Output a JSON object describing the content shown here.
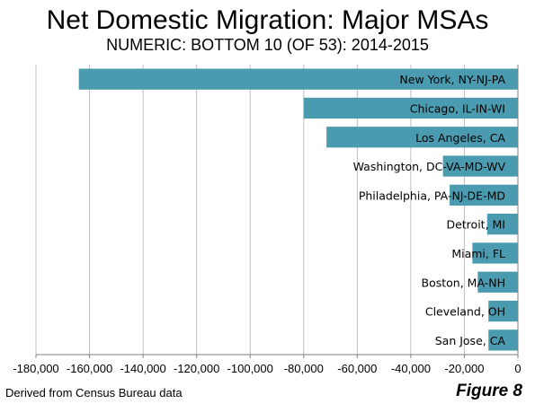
{
  "title": "Net Domestic Migration: Major MSAs",
  "subtitle": "NUMERIC: BOTTOM 10 (OF 53): 2014-2015",
  "source_note": "Derived from Census Bureau data",
  "figure_label": "Figure 8",
  "colors": {
    "bar": "#4a9bb0",
    "grid": "#bfbfbf",
    "axis": "#808080"
  },
  "chart_data": {
    "type": "bar",
    "orientation": "horizontal",
    "categories": [
      "New York, NY-NJ-PA",
      "Chicago, IL-IN-WI",
      "Los Angeles, CA",
      "Washington, DC-VA-MD-WV",
      "Philadelphia, PA-NJ-DE-MD",
      "Detroit,  MI",
      "Miami, FL",
      "Boston, MA-NH",
      "Cleveland, OH",
      "San Jose, CA"
    ],
    "values": [
      -164000,
      -80000,
      -71500,
      -28000,
      -25500,
      -11500,
      -17000,
      -15000,
      -11000,
      -11000
    ],
    "xlim": [
      -180000,
      0
    ],
    "xticks": [
      -180000,
      -160000,
      -140000,
      -120000,
      -100000,
      -80000,
      -60000,
      -40000,
      -20000,
      0
    ],
    "xtick_labels": [
      "-180,000",
      "-160,000",
      "-140,000",
      "-120,000",
      "-100,000",
      "-80,000",
      "-60,000",
      "-40,000",
      "-20,000",
      "0"
    ],
    "grid": true,
    "legend": "none"
  }
}
